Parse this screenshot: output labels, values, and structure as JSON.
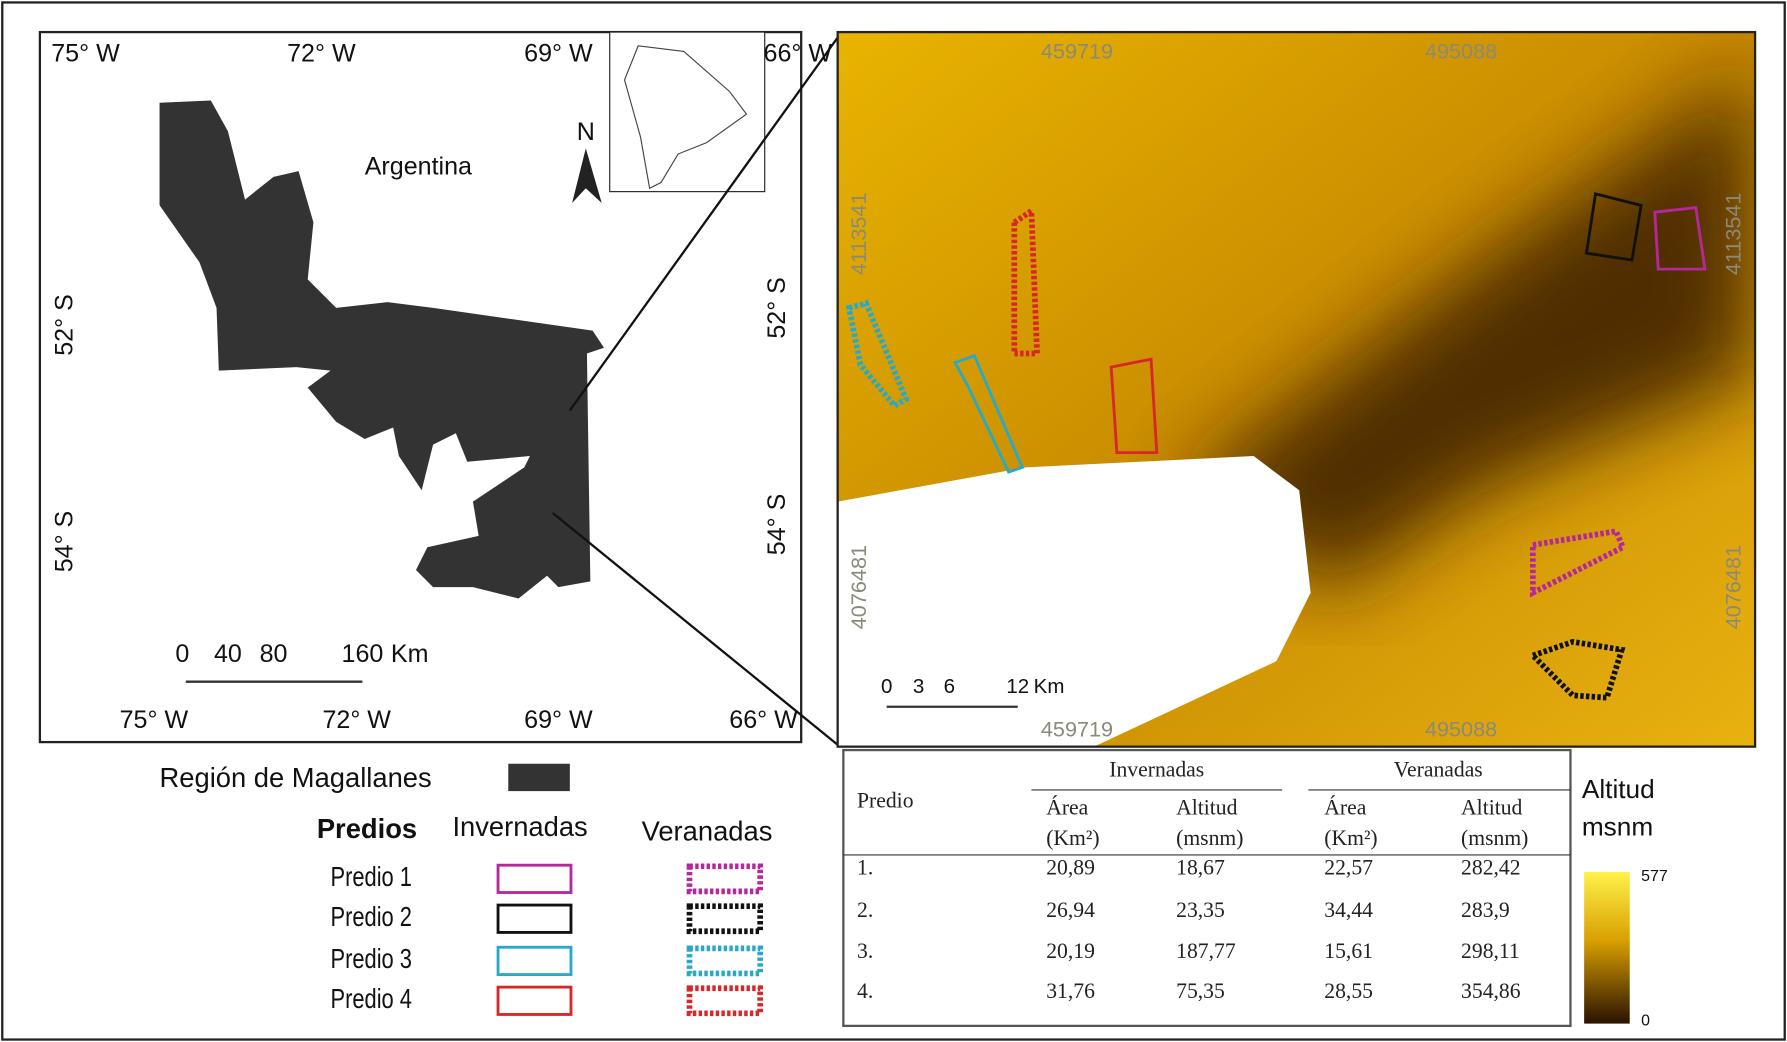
{
  "left_map": {
    "top_labels": [
      "75° W",
      "72° W",
      "69° W",
      "66° W"
    ],
    "bottom_labels": [
      "75° W",
      "72° W",
      "69° W",
      "66° W"
    ],
    "left_labels": [
      "52° S",
      "54° S"
    ],
    "right_labels": [
      "52° S",
      "54° S"
    ],
    "country_label": "Argentina",
    "north": "N",
    "scale_labels": [
      "0",
      "40",
      "80",
      "160",
      "Km"
    ]
  },
  "right_map": {
    "top_labels": [
      "459719",
      "495088"
    ],
    "bottom_labels": [
      "459719",
      "495088"
    ],
    "left_labels": [
      "4113541",
      "4076481"
    ],
    "right_labels": [
      "4113541",
      "4076481"
    ],
    "scale_labels": [
      "0",
      "3",
      "6",
      "12",
      "Km"
    ]
  },
  "legend": {
    "region": "Región de Magallanes",
    "predios_title": "Predios",
    "invernadas": "Invernadas",
    "veranadas": "Veranadas",
    "rows": [
      {
        "label": "Predio 1",
        "color": "#b5279d"
      },
      {
        "label": "Predio 2",
        "color": "#111111"
      },
      {
        "label": "Predio 3",
        "color": "#29a9c8"
      },
      {
        "label": "Predio 4",
        "color": "#d8272a"
      }
    ]
  },
  "table": {
    "header": "Predio",
    "groups": [
      "Invernadas",
      "Veranadas"
    ],
    "subheaders": [
      [
        "Área",
        "(Km²)"
      ],
      [
        "Altitud",
        "(msnm)"
      ],
      [
        "Área",
        "(Km²)"
      ],
      [
        "Altitud",
        "(msnm)"
      ]
    ],
    "rows": [
      [
        "1.",
        "20,89",
        "18,67",
        "22,57",
        "282,42"
      ],
      [
        "2.",
        "26,94",
        "23,35",
        "34,44",
        "283,9"
      ],
      [
        "3.",
        "20,19",
        "187,77",
        "15,61",
        "298,11"
      ],
      [
        "4.",
        "31,76",
        "75,35",
        "28,55",
        "354,86"
      ]
    ]
  },
  "colorbar": {
    "title": [
      "Altitud",
      "msnm"
    ],
    "max": "577",
    "min": "0"
  }
}
